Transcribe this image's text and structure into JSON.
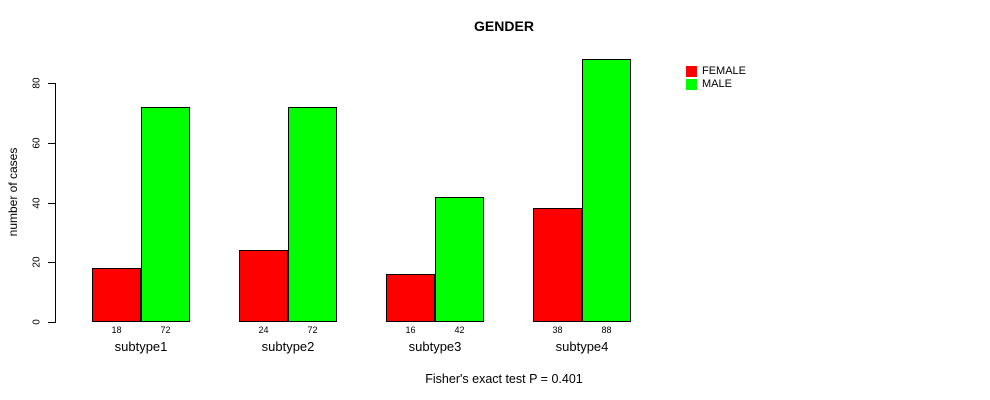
{
  "title": "GENDER",
  "ylabel": "number of cases",
  "caption": "Fisher's exact test P = 0.401",
  "legend": [
    {
      "label": "FEMALE",
      "color": "#FF0000"
    },
    {
      "label": "MALE",
      "color": "#00FF00"
    }
  ],
  "chart_data": {
    "type": "bar",
    "title": "GENDER",
    "xlabel": "",
    "ylabel": "number of cases",
    "categories": [
      "subtype1",
      "subtype2",
      "subtype3",
      "subtype4"
    ],
    "series": [
      {
        "name": "FEMALE",
        "color": "#FF0000",
        "values": [
          18,
          24,
          16,
          38
        ]
      },
      {
        "name": "MALE",
        "color": "#00FF00",
        "values": [
          72,
          72,
          42,
          88
        ]
      }
    ],
    "bar_value_labels": [
      [
        "18",
        "72"
      ],
      [
        "24",
        "72"
      ],
      [
        "16",
        "42"
      ],
      [
        "38",
        "88"
      ]
    ],
    "ylim": [
      0,
      80
    ],
    "yticks": [
      0,
      20,
      40,
      60,
      80
    ],
    "grid": false,
    "legend_position": "top-right-outside",
    "annotation": "Fisher's exact test P = 0.401"
  }
}
